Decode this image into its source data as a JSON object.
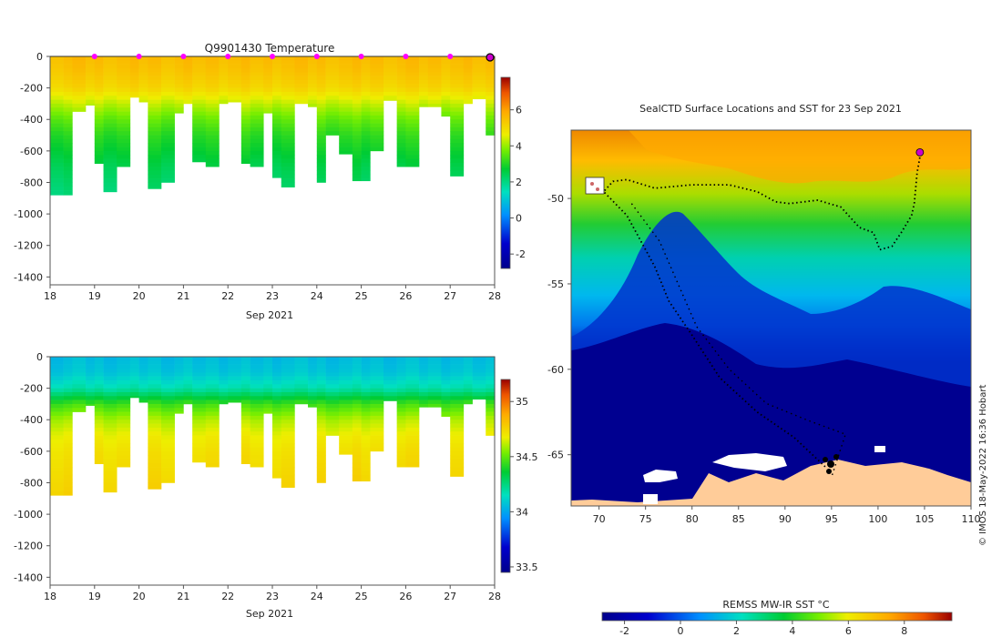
{
  "chart_data": [
    {
      "type": "heatmap",
      "id": "temperature-section",
      "title": "Q9901430  Temperature",
      "xlabel": "Sep 2021",
      "ylabel": "",
      "xlim": [
        18,
        28
      ],
      "ylim": [
        -1450,
        0
      ],
      "x_ticks": [
        "18",
        "19",
        "20",
        "21",
        "22",
        "23",
        "24",
        "25",
        "26",
        "27",
        "28"
      ],
      "y_ticks": [
        "0",
        "-200",
        "-400",
        "-600",
        "-800",
        "-1000",
        "-1200",
        "-1400"
      ],
      "colorbar": {
        "min": -2.8,
        "max": 7.8,
        "ticks": [
          "-2",
          "0",
          "2",
          "4",
          "6"
        ]
      },
      "profile_times": [
        18.0,
        18.3,
        18.5,
        18.8,
        19.0,
        19.2,
        19.5,
        19.8,
        20.0,
        20.2,
        20.5,
        20.8,
        21.0,
        21.2,
        21.5,
        21.8,
        22.0,
        22.3,
        22.5,
        22.8,
        23.0,
        23.2,
        23.5,
        23.8,
        24.0,
        24.2,
        24.5,
        24.8,
        25.0,
        25.2,
        25.5,
        25.8,
        26.0,
        26.3,
        26.5,
        26.8,
        27.0,
        27.3,
        27.5,
        27.8,
        28.0
      ],
      "profile_depths": [
        880,
        880,
        350,
        310,
        680,
        860,
        700,
        260,
        290,
        840,
        800,
        360,
        300,
        670,
        700,
        300,
        290,
        680,
        700,
        360,
        770,
        830,
        300,
        320,
        800,
        500,
        620,
        790,
        790,
        600,
        280,
        700,
        700,
        320,
        320,
        380,
        760,
        300,
        270,
        500,
        500
      ],
      "temperature_profile": {
        "depths": [
          0,
          100,
          200,
          300,
          400,
          500,
          600,
          700,
          800,
          900
        ],
        "values": [
          5.6,
          5.4,
          5.1,
          4.3,
          3.6,
          3.1,
          2.8,
          2.5,
          2.3,
          2.1
        ]
      },
      "surface_markers_at": [
        19,
        20,
        21,
        22,
        23,
        24,
        25,
        26,
        27
      ],
      "latest_marker_at": 28
    },
    {
      "type": "heatmap",
      "id": "salinity-section",
      "title": "",
      "xlabel": "Sep 2021",
      "ylabel": "",
      "xlim": [
        18,
        28
      ],
      "ylim": [
        -1450,
        0
      ],
      "x_ticks": [
        "18",
        "19",
        "20",
        "21",
        "22",
        "23",
        "24",
        "25",
        "26",
        "27",
        "28"
      ],
      "y_ticks": [
        "0",
        "-200",
        "-400",
        "-600",
        "-800",
        "-1000",
        "-1200",
        "-1400"
      ],
      "colorbar": {
        "min": 33.45,
        "max": 35.2,
        "ticks": [
          "33.5",
          "34",
          "34.5",
          "35"
        ]
      },
      "salinity_profile": {
        "depths": [
          0,
          100,
          200,
          300,
          400,
          500,
          600,
          700,
          800,
          900
        ],
        "values": [
          34.05,
          34.08,
          34.18,
          34.45,
          34.6,
          34.68,
          34.72,
          34.74,
          34.76,
          34.78
        ]
      }
    },
    {
      "type": "heatmap",
      "id": "sst-map",
      "title": "SealCTD Surface Locations and SST for 23 Sep 2021",
      "xlabel": "",
      "ylabel": "",
      "xlim": [
        67,
        110
      ],
      "ylim": [
        -68,
        -46
      ],
      "x_ticks": [
        "70",
        "75",
        "80",
        "85",
        "90",
        "95",
        "100",
        "105",
        "110"
      ],
      "y_ticks": [
        "-50",
        "-55",
        "-60",
        "-65"
      ],
      "colorbar": {
        "label": "REMSS MW-IR SST °C",
        "min": -2.8,
        "max": 9.7,
        "ticks": [
          "-2",
          "0",
          "2",
          "4",
          "6",
          "8"
        ]
      },
      "track_path": [
        [
          104.5,
          -47.6
        ],
        [
          104.2,
          -48.5
        ],
        [
          103.9,
          -50.3
        ],
        [
          103.6,
          -51.0
        ],
        [
          102.5,
          -52.0
        ],
        [
          101.5,
          -52.8
        ],
        [
          100.2,
          -53.0
        ],
        [
          99.5,
          -52.0
        ],
        [
          98.0,
          -51.7
        ],
        [
          96.0,
          -50.5
        ],
        [
          93.5,
          -50.1
        ],
        [
          90.5,
          -50.3
        ],
        [
          89.0,
          -50.2
        ],
        [
          87.0,
          -49.6
        ],
        [
          84.0,
          -49.2
        ],
        [
          80.0,
          -49.2
        ],
        [
          76.0,
          -49.4
        ],
        [
          73.0,
          -48.9
        ],
        [
          71.5,
          -49.0
        ],
        [
          70.5,
          -49.6
        ],
        [
          73.0,
          -51.0
        ],
        [
          76.0,
          -54.0
        ],
        [
          77.5,
          -56.0
        ],
        [
          80.0,
          -58.0
        ],
        [
          83.0,
          -60.5
        ],
        [
          87.0,
          -62.5
        ],
        [
          91.0,
          -64.0
        ],
        [
          94.5,
          -65.8
        ]
      ],
      "track_path_2": [
        [
          73.5,
          -50.3
        ],
        [
          76.5,
          -52.5
        ],
        [
          78.5,
          -55.0
        ],
        [
          80.5,
          -57.5
        ],
        [
          84.0,
          -60.0
        ],
        [
          88.0,
          -62.0
        ],
        [
          92.5,
          -63.0
        ],
        [
          96.5,
          -63.8
        ],
        [
          95.0,
          -66.3
        ]
      ],
      "last_position": [
        104.5,
        -47.3
      ]
    }
  ],
  "footer": {
    "credit": "© IMOS 18-May-2022 16:36 Hobart"
  },
  "colors": {
    "marker": "#ff00ff",
    "land": "#ffcc99",
    "ice": "#ffffff",
    "track": "#000000"
  }
}
